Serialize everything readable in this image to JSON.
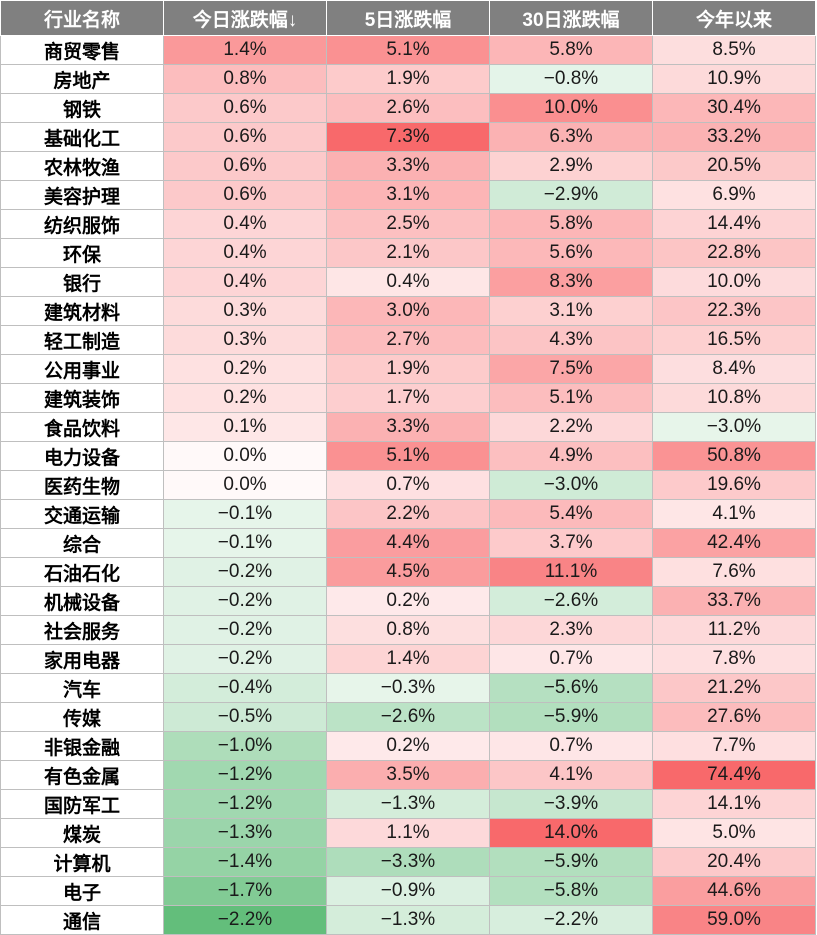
{
  "chart_data": {
    "type": "table",
    "columns": [
      "行业名称",
      "今日涨跌幅↓",
      "5日涨跌幅",
      "30日涨跌幅",
      "今年以来"
    ],
    "colors": {
      "positive": "#f8696b",
      "negative": "#63be7b",
      "neutral": "#ffffff"
    },
    "rows": [
      {
        "name": "商贸零售",
        "values": [
          1.4,
          5.1,
          5.8,
          8.5
        ]
      },
      {
        "name": "房地产",
        "values": [
          0.8,
          1.9,
          -0.8,
          10.9
        ]
      },
      {
        "name": "钢铁",
        "values": [
          0.6,
          2.6,
          10.0,
          30.4
        ]
      },
      {
        "name": "基础化工",
        "values": [
          0.6,
          7.3,
          6.3,
          33.2
        ]
      },
      {
        "name": "农林牧渔",
        "values": [
          0.6,
          3.3,
          2.9,
          20.5
        ]
      },
      {
        "name": "美容护理",
        "values": [
          0.6,
          3.1,
          -2.9,
          6.9
        ]
      },
      {
        "name": "纺织服饰",
        "values": [
          0.4,
          2.5,
          5.8,
          14.4
        ]
      },
      {
        "name": "环保",
        "values": [
          0.4,
          2.1,
          5.6,
          22.8
        ]
      },
      {
        "name": "银行",
        "values": [
          0.4,
          0.4,
          8.3,
          10.0
        ]
      },
      {
        "name": "建筑材料",
        "values": [
          0.3,
          3.0,
          3.1,
          22.3
        ]
      },
      {
        "name": "轻工制造",
        "values": [
          0.3,
          2.7,
          4.3,
          16.5
        ]
      },
      {
        "name": "公用事业",
        "values": [
          0.2,
          1.9,
          7.5,
          8.4
        ]
      },
      {
        "name": "建筑装饰",
        "values": [
          0.2,
          1.7,
          5.1,
          10.8
        ]
      },
      {
        "name": "食品饮料",
        "values": [
          0.1,
          3.3,
          2.2,
          -3.0
        ]
      },
      {
        "name": "电力设备",
        "values": [
          0.0,
          5.1,
          4.9,
          50.8
        ]
      },
      {
        "name": "医药生物",
        "values": [
          0.0,
          0.7,
          -3.0,
          19.6
        ]
      },
      {
        "name": "交通运输",
        "values": [
          -0.1,
          2.2,
          5.4,
          4.1
        ]
      },
      {
        "name": "综合",
        "values": [
          -0.1,
          4.4,
          3.7,
          42.4
        ]
      },
      {
        "name": "石油石化",
        "values": [
          -0.2,
          4.5,
          11.1,
          7.6
        ]
      },
      {
        "name": "机械设备",
        "values": [
          -0.2,
          0.2,
          -2.6,
          33.7
        ]
      },
      {
        "name": "社会服务",
        "values": [
          -0.2,
          0.8,
          2.3,
          11.2
        ]
      },
      {
        "name": "家用电器",
        "values": [
          -0.2,
          1.4,
          0.7,
          7.8
        ]
      },
      {
        "name": "汽车",
        "values": [
          -0.4,
          -0.3,
          -5.6,
          21.2
        ]
      },
      {
        "name": "传媒",
        "values": [
          -0.5,
          -2.6,
          -5.9,
          27.6
        ]
      },
      {
        "name": "非银金融",
        "values": [
          -1.0,
          0.2,
          0.7,
          7.7
        ]
      },
      {
        "name": "有色金属",
        "values": [
          -1.2,
          3.5,
          4.1,
          74.4
        ]
      },
      {
        "name": "国防军工",
        "values": [
          -1.2,
          -1.3,
          -3.9,
          14.1
        ]
      },
      {
        "name": "煤炭",
        "values": [
          -1.3,
          1.1,
          14.0,
          5.0
        ]
      },
      {
        "name": "计算机",
        "values": [
          -1.4,
          -3.3,
          -5.9,
          20.4
        ]
      },
      {
        "name": "电子",
        "values": [
          -1.7,
          -0.9,
          -5.8,
          44.6
        ]
      },
      {
        "name": "通信",
        "values": [
          -2.2,
          -1.3,
          -2.2,
          59.0
        ]
      }
    ]
  }
}
